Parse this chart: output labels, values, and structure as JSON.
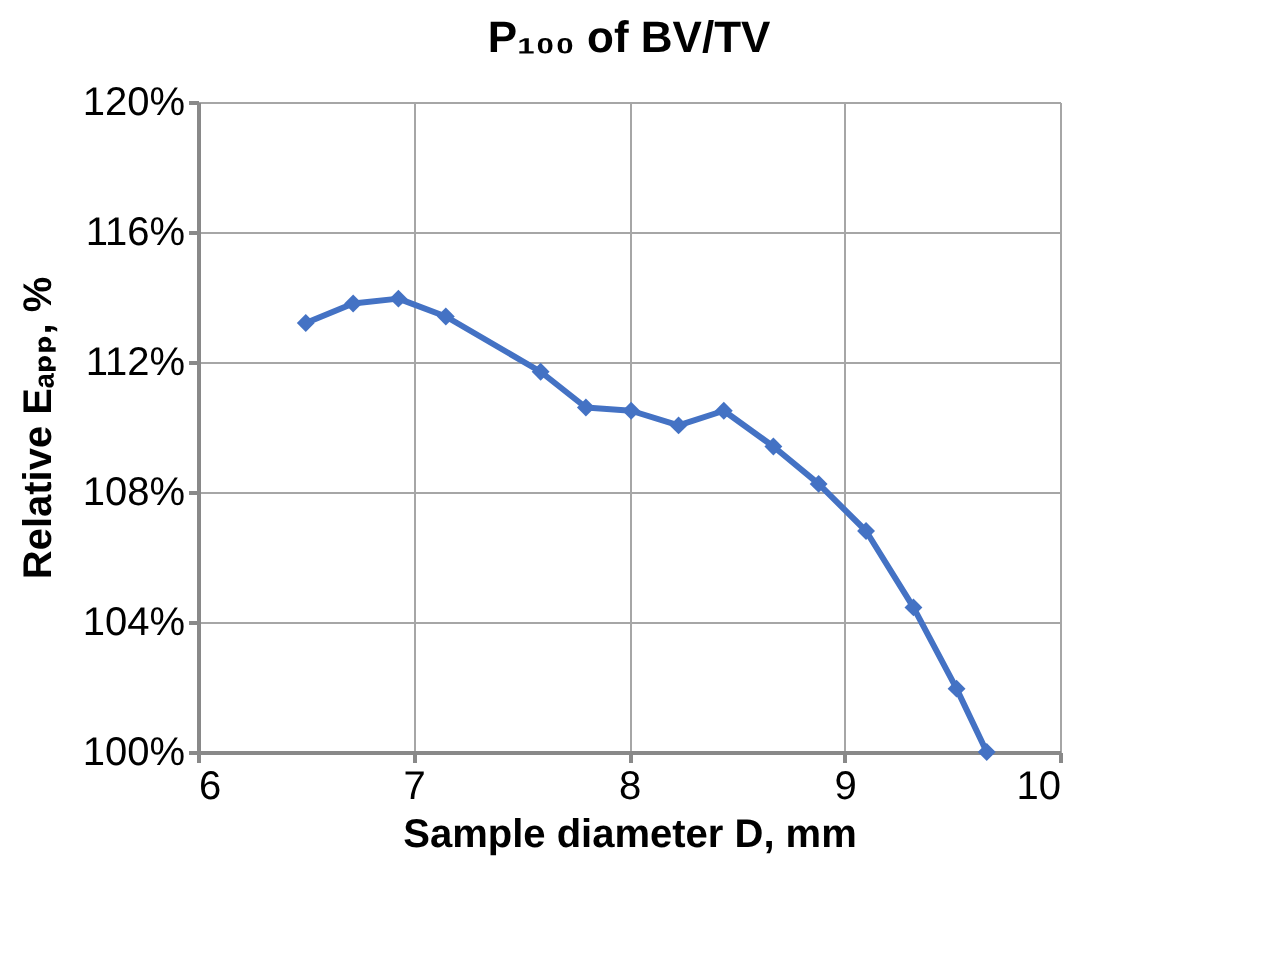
{
  "chart_data": {
    "type": "line",
    "title": "P₁₀₀ of BV/TV",
    "xlabel": "Sample diameter D, mm",
    "ylabel": "Relative Eₐₚₚ, %",
    "x": [
      6.5,
      6.72,
      6.93,
      7.15,
      7.59,
      7.8,
      8.01,
      8.23,
      8.44,
      8.67,
      8.88,
      9.1,
      9.32,
      9.52,
      9.66
    ],
    "series": [
      {
        "color": "#4472c4",
        "values": [
          113.2,
          113.8,
          113.95,
          113.4,
          111.7,
          110.6,
          110.5,
          110.05,
          110.5,
          109.4,
          108.25,
          106.8,
          104.45,
          101.95,
          100
        ]
      }
    ],
    "xlim": [
      6,
      10
    ],
    "xticks": [
      6,
      7,
      8,
      9,
      10
    ],
    "ylim": [
      100,
      120
    ],
    "yticks": [
      {
        "value": 100,
        "label": "100%"
      },
      {
        "value": 104,
        "label": "104%"
      },
      {
        "value": 108,
        "label": "108%"
      },
      {
        "value": 112,
        "label": "112%"
      },
      {
        "value": 116,
        "label": "116%"
      },
      {
        "value": 120,
        "label": "120%"
      }
    ],
    "grid": true,
    "marker": "diamond",
    "line_style": "solid",
    "legend": false
  }
}
